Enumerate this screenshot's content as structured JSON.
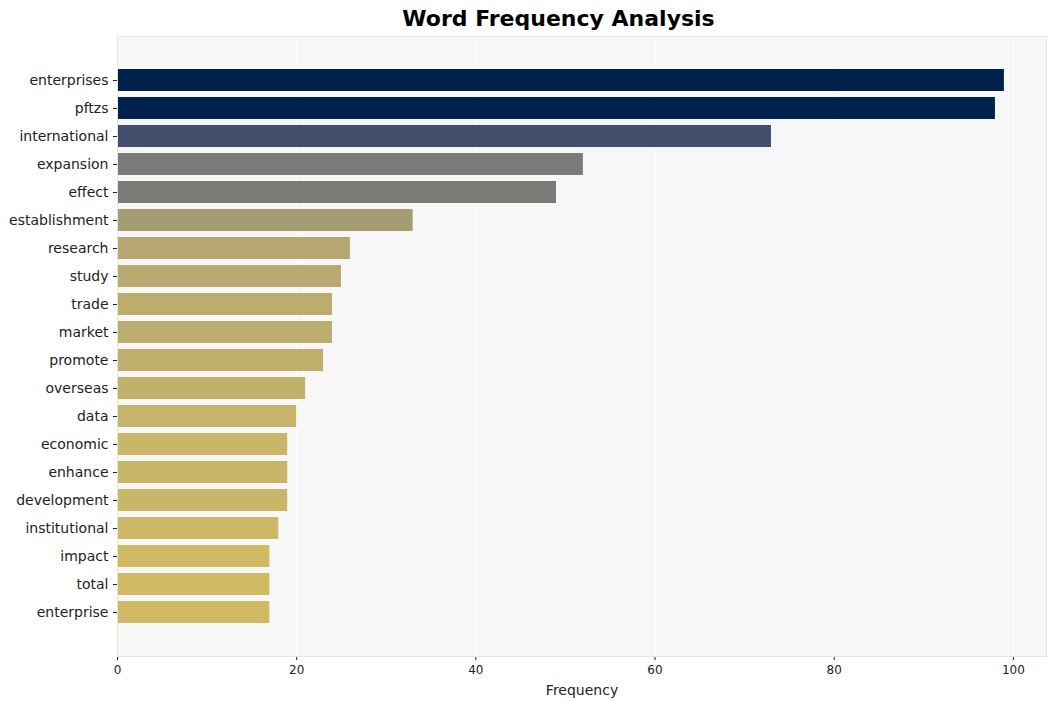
{
  "chart_data": {
    "type": "bar",
    "orientation": "horizontal",
    "title": "Word Frequency Analysis",
    "x_label": "Frequency",
    "categories": [
      "enterprises",
      "pftzs",
      "international",
      "expansion",
      "effect",
      "establishment",
      "research",
      "study",
      "trade",
      "market",
      "promote",
      "overseas",
      "data",
      "economic",
      "enhance",
      "development",
      "institutional",
      "impact",
      "total",
      "enterprise"
    ],
    "values": [
      99,
      98,
      73,
      52,
      49,
      33,
      26,
      25,
      24,
      24,
      23,
      21,
      20,
      19,
      19,
      19,
      18,
      17,
      17,
      17
    ],
    "colors": [
      "#00204c",
      "#00224e",
      "#434e6c",
      "#7a7a78",
      "#7c7b78",
      "#a59c74",
      "#b6a770",
      "#b8a96f",
      "#bcac6e",
      "#bcac6e",
      "#c0ae6c",
      "#c3b16b",
      "#c6b46a",
      "#c9b668",
      "#c9b668",
      "#c9b668",
      "#ccb867",
      "#d0ba64",
      "#d0ba64",
      "#d0ba64"
    ],
    "xlim": [
      0,
      103.7
    ],
    "xticks": [
      0,
      20,
      40,
      60,
      80,
      100
    ],
    "grid": true
  }
}
